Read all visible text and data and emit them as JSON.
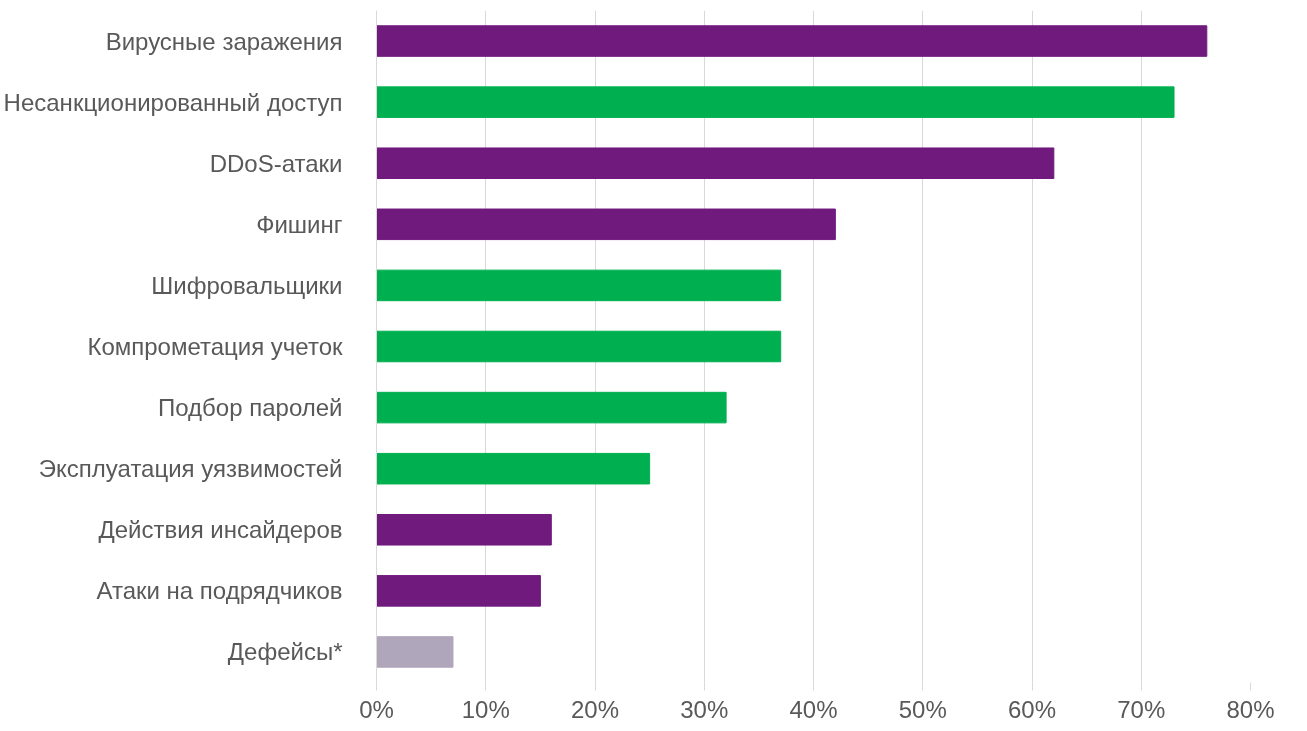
{
  "chart_data": {
    "type": "bar",
    "orientation": "horizontal",
    "categories": [
      "Вирусные заражения",
      "Несанкционированный доступ",
      "DDoS-атаки",
      "Фишинг",
      "Шифровальщики",
      "Компрометация учеток",
      "Подбор паролей",
      "Эксплуатация уязвимостей",
      "Действия инсайдеров",
      "Атаки на подрядчиков",
      "Дефейсы*"
    ],
    "values": [
      76,
      73,
      62,
      42,
      37,
      37,
      32,
      25,
      16,
      15,
      7
    ],
    "colors": [
      "#701a7e",
      "#00b050",
      "#701a7e",
      "#701a7e",
      "#00b050",
      "#00b050",
      "#00b050",
      "#00b050",
      "#701a7e",
      "#701a7e",
      "#b0a6bc"
    ],
    "xlim": [
      0,
      80
    ],
    "xticks": [
      {
        "value": 0,
        "label": "0%"
      },
      {
        "value": 10,
        "label": "10%"
      },
      {
        "value": 20,
        "label": "20%"
      },
      {
        "value": 30,
        "label": "30%"
      },
      {
        "value": 40,
        "label": "40%"
      },
      {
        "value": 50,
        "label": "50%"
      },
      {
        "value": 60,
        "label": "60%"
      },
      {
        "value": 70,
        "label": "70%"
      },
      {
        "value": 80,
        "label": "80%"
      }
    ],
    "grid": "x"
  }
}
